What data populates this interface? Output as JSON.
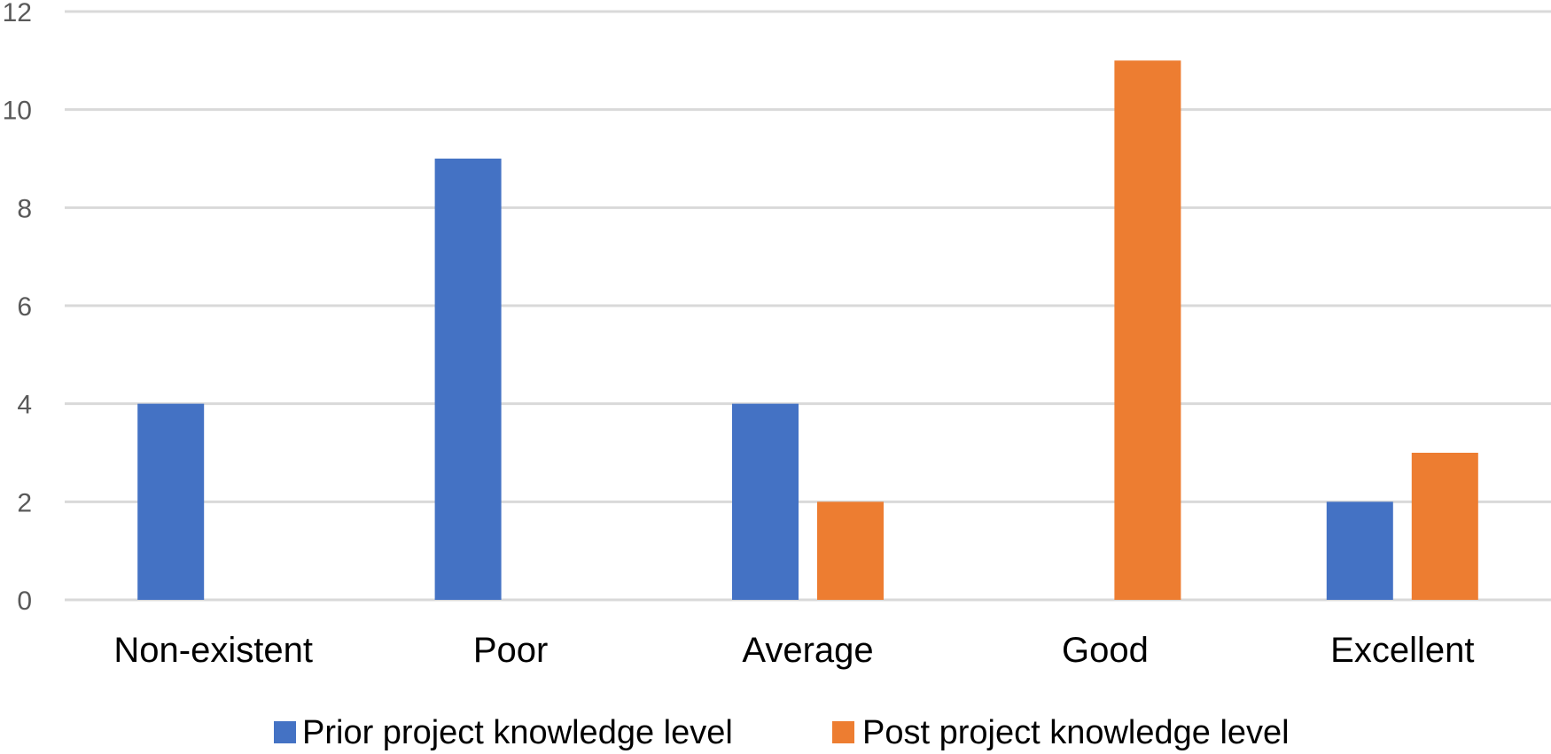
{
  "chart_data": {
    "type": "bar",
    "title": "",
    "xlabel": "",
    "ylabel": "",
    "categories": [
      "Non-existent",
      "Poor",
      "Average",
      "Good",
      "Excellent"
    ],
    "series": [
      {
        "name": "Prior project knowledge level",
        "values": [
          4,
          9,
          4,
          0,
          2
        ],
        "color": "#4472c4"
      },
      {
        "name": "Post project knowledge level",
        "values": [
          0,
          0,
          2,
          11,
          3
        ],
        "color": "#ed7d31"
      }
    ],
    "ylim": [
      0,
      12
    ],
    "yticks": [
      0,
      2,
      4,
      6,
      8,
      10,
      12
    ],
    "grid": true,
    "legend": "bottom"
  }
}
